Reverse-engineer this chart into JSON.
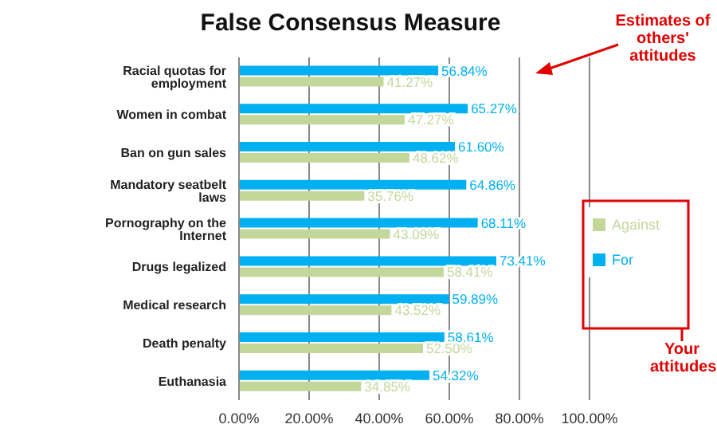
{
  "chart_data": {
    "type": "bar",
    "orientation": "horizontal",
    "title": "False Consensus Measure",
    "categories": [
      "Racial quotas for employment",
      "Women in combat",
      "Ban on gun sales",
      "Mandatory seatbelt laws",
      "Pornography on the Internet",
      "Drugs legalized",
      "Medical research",
      "Death penalty",
      "Euthanasia"
    ],
    "series": [
      {
        "name": "For",
        "color": "#00b0f0",
        "values": [
          56.84,
          65.27,
          61.6,
          64.86,
          68.11,
          73.41,
          59.89,
          58.61,
          54.32
        ],
        "value_labels": [
          "56.84%",
          "65.27%",
          "61.60%",
          "64.86%",
          "68.11%",
          "73.41%",
          "59.89%",
          "58.61%",
          "54.32%"
        ]
      },
      {
        "name": "Against",
        "color": "#c4d79b",
        "values": [
          41.27,
          47.27,
          48.62,
          35.76,
          43.09,
          58.41,
          43.52,
          52.5,
          34.85
        ],
        "value_labels": [
          "41.27%",
          "47.27%",
          "48.62%",
          "35.76%",
          "43.09%",
          "58.41%",
          "43.52%",
          "52.50%",
          "34.85%"
        ]
      }
    ],
    "xlim": [
      0,
      100
    ],
    "xticks": [
      {
        "value": 0,
        "label": "0.00%"
      },
      {
        "value": 20,
        "label": "20.00%"
      },
      {
        "value": 40,
        "label": "40.00%"
      },
      {
        "value": 60,
        "label": "60.00%"
      },
      {
        "value": 80,
        "label": "80.00%"
      },
      {
        "value": 100,
        "label": "100.00%"
      }
    ],
    "grid": "x",
    "legend": "right",
    "annotations": [
      "Estimates of others' attitudes",
      "Your attitudes"
    ]
  }
}
